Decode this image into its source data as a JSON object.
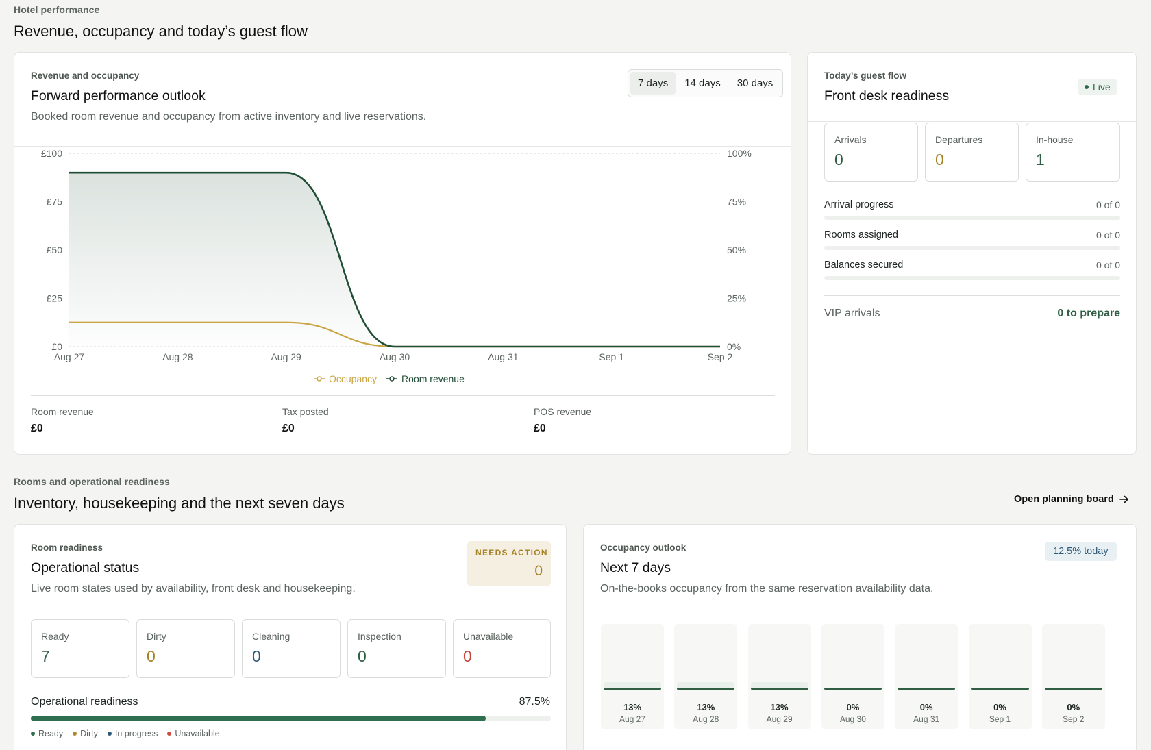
{
  "header": {
    "eyebrow": "Hotel performance",
    "title": "Revenue, occupancy and today’s guest flow"
  },
  "revenue_card": {
    "eyebrow": "Revenue and occupancy",
    "title": "Forward performance outlook",
    "description": "Booked room revenue and occupancy from active inventory and live reservations.",
    "ranges": [
      "7 days",
      "14 days",
      "30 days"
    ],
    "active_range": "7 days",
    "legend": {
      "occupancy": "Occupancy",
      "revenue": "Room revenue"
    },
    "stats": [
      {
        "label": "Room revenue",
        "value": "£0"
      },
      {
        "label": "Tax posted",
        "value": "£0"
      },
      {
        "label": "POS revenue",
        "value": "£0"
      }
    ]
  },
  "chart_data": {
    "type": "area",
    "categories": [
      "Aug 27",
      "Aug 28",
      "Aug 29",
      "Aug 30",
      "Aug 31",
      "Sep 1",
      "Sep 2"
    ],
    "y_left_ticks": [
      "£0",
      "£25",
      "£50",
      "£75",
      "£100"
    ],
    "y_right_ticks": [
      "0%",
      "25%",
      "50%",
      "75%",
      "100%"
    ],
    "y_left_range": [
      0,
      100
    ],
    "y_right_range": [
      0,
      100
    ],
    "series": [
      {
        "name": "Room revenue",
        "axis": "left",
        "values": [
          90,
          90,
          90,
          0,
          0,
          0,
          0
        ],
        "color": "#1f4d35",
        "fill": true
      },
      {
        "name": "Occupancy",
        "axis": "right",
        "values": [
          12.5,
          12.5,
          12.5,
          0,
          0,
          0,
          0
        ],
        "color": "#c9a543",
        "fill": false
      }
    ],
    "grid": "horizontal-top-only",
    "legend_position": "bottom-center"
  },
  "guest_flow": {
    "eyebrow": "Today’s guest flow",
    "title": "Front desk readiness",
    "live_label": "Live",
    "counts": [
      {
        "label": "Arrivals",
        "value": "0",
        "color": "#2f5e45"
      },
      {
        "label": "Departures",
        "value": "0",
        "color": "#a68225"
      },
      {
        "label": "In-house",
        "value": "1",
        "color": "#2f5e45"
      }
    ],
    "progress": [
      {
        "label": "Arrival progress",
        "value": "0 of 0",
        "fraction": 0
      },
      {
        "label": "Rooms assigned",
        "value": "0 of 0",
        "fraction": 0
      },
      {
        "label": "Balances secured",
        "value": "0 of 0",
        "fraction": 0
      }
    ],
    "vip_label": "VIP arrivals",
    "vip_value": "0 to prepare"
  },
  "rooms_section": {
    "eyebrow": "Rooms and operational readiness",
    "title": "Inventory, housekeeping and the next seven days",
    "link_label": "Open planning board"
  },
  "room_readiness": {
    "eyebrow": "Room readiness",
    "title": "Operational status",
    "description": "Live room states used by availability, front desk and housekeeping.",
    "needs_label": "NEEDS ACTION",
    "needs_value": "0",
    "states": [
      {
        "label": "Ready",
        "value": "7",
        "color": "#2f5e45"
      },
      {
        "label": "Dirty",
        "value": "0",
        "color": "#a68225"
      },
      {
        "label": "Cleaning",
        "value": "0",
        "color": "#2f5b78"
      },
      {
        "label": "Inspection",
        "value": "0",
        "color": "#2f5e45"
      },
      {
        "label": "Unavailable",
        "value": "0",
        "color": "#c4463a"
      }
    ],
    "readiness_label": "Operational readiness",
    "readiness_value": "87.5%",
    "readiness_fraction": 0.875,
    "legend": [
      {
        "label": "Ready",
        "color": "#2f6e4e"
      },
      {
        "label": "Dirty",
        "color": "#b08a2a"
      },
      {
        "label": "In progress",
        "color": "#2f5b78"
      },
      {
        "label": "Unavailable",
        "color": "#d0493d"
      }
    ]
  },
  "occupancy_outlook": {
    "eyebrow": "Occupancy outlook",
    "title": "Next 7 days",
    "description": "On-the-books occupancy from the same reservation availability data.",
    "badge": "12.5% today",
    "days": [
      {
        "pct": "13%",
        "day": "Aug 27",
        "value": 12.5
      },
      {
        "pct": "13%",
        "day": "Aug 28",
        "value": 12.5
      },
      {
        "pct": "13%",
        "day": "Aug 29",
        "value": 12.5
      },
      {
        "pct": "0%",
        "day": "Aug 30",
        "value": 0
      },
      {
        "pct": "0%",
        "day": "Aug 31",
        "value": 0
      },
      {
        "pct": "0%",
        "day": "Sep 1",
        "value": 0
      },
      {
        "pct": "0%",
        "day": "Sep 2",
        "value": 0
      }
    ]
  }
}
